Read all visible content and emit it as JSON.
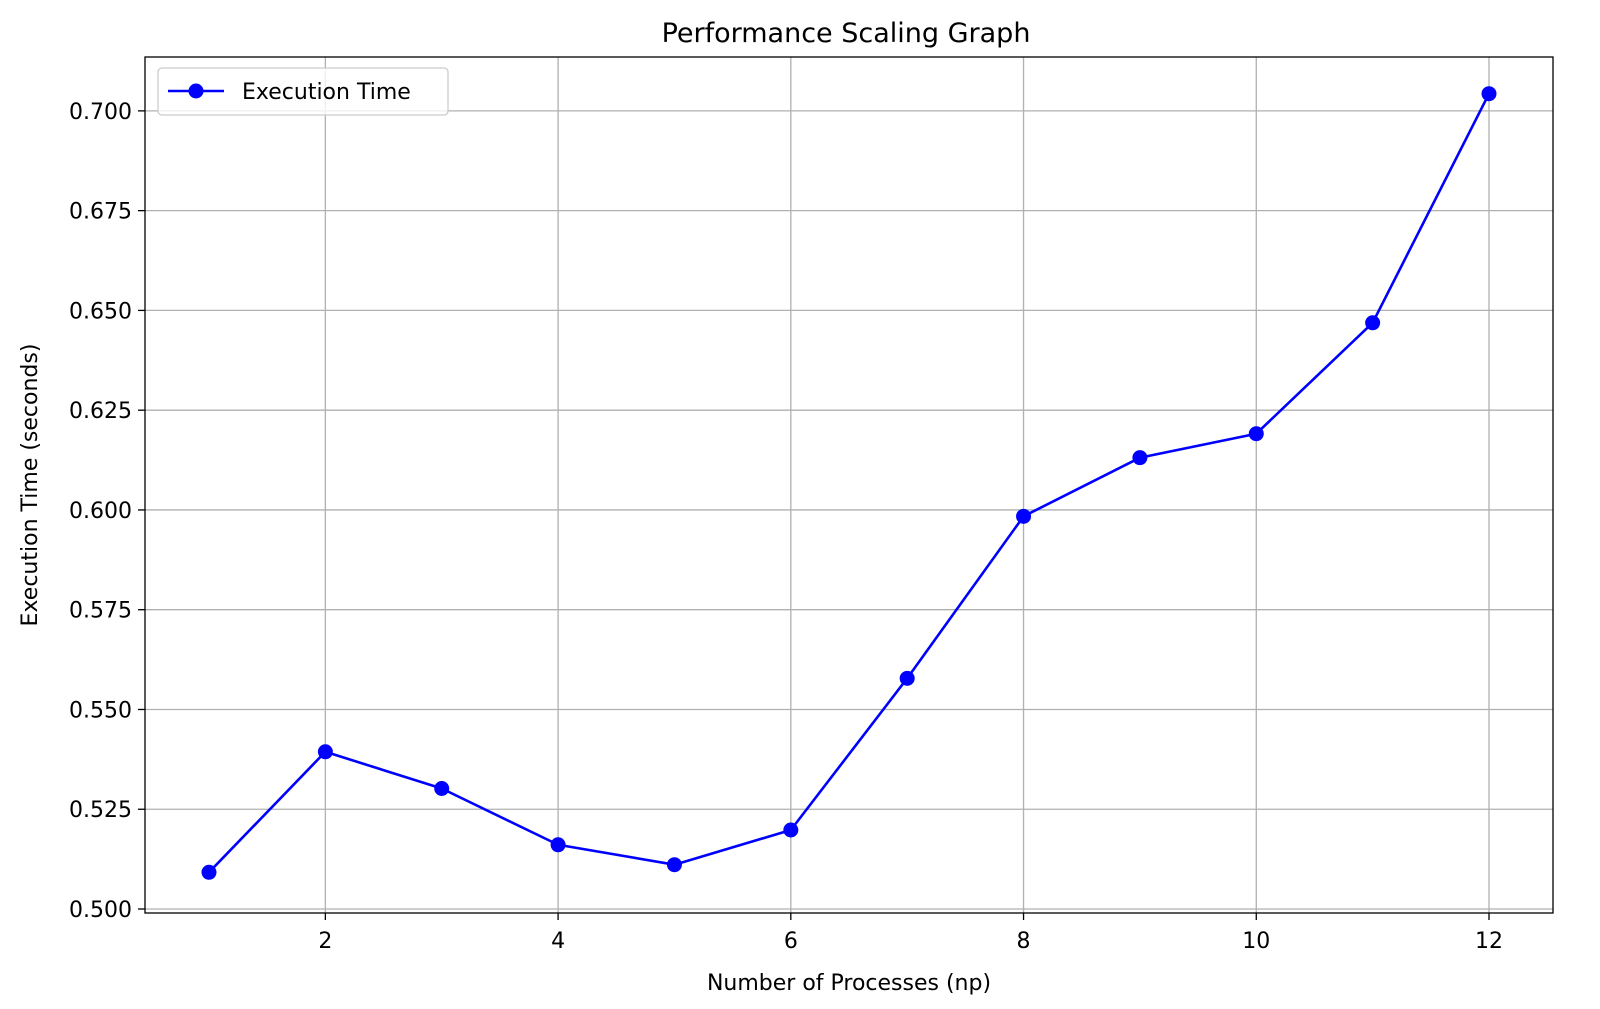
{
  "chart_data": {
    "type": "line",
    "title": "Performance Scaling Graph",
    "xlabel": "Number of Processes (np)",
    "ylabel": "Execution Time (seconds)",
    "xlim": [
      0.45,
      12.55
    ],
    "ylim": [
      0.499,
      0.7135
    ],
    "x_ticks": [
      2,
      4,
      6,
      8,
      10,
      12
    ],
    "y_ticks": [
      0.5,
      0.525,
      0.55,
      0.575,
      0.6,
      0.625,
      0.65,
      0.675,
      0.7
    ],
    "x_tick_labels": [
      "2",
      "4",
      "6",
      "8",
      "10",
      "12"
    ],
    "y_tick_labels": [
      "0.500",
      "0.525",
      "0.550",
      "0.575",
      "0.600",
      "0.625",
      "0.650",
      "0.675",
      "0.700"
    ],
    "grid": true,
    "legend_position": "top-left",
    "series": [
      {
        "name": "Execution Time",
        "color": "#0000ff",
        "marker": "circle",
        "x": [
          1,
          2,
          3,
          4,
          5,
          6,
          7,
          8,
          9,
          10,
          11,
          12
        ],
        "y": [
          0.5092,
          0.5394,
          0.5302,
          0.5161,
          0.5111,
          0.5198,
          0.5578,
          0.5984,
          0.6131,
          0.6191,
          0.6469,
          0.7043
        ]
      }
    ]
  }
}
